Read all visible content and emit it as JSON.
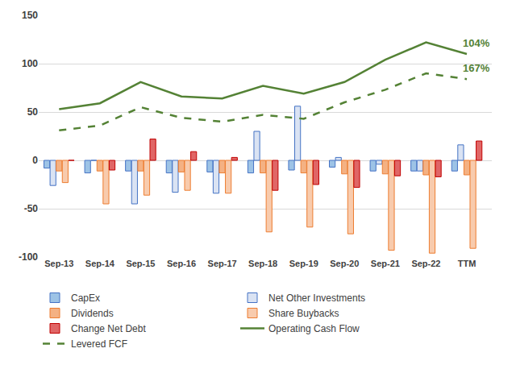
{
  "chart_data": {
    "type": "bar",
    "categories": [
      "Sep-13",
      "Sep-14",
      "Sep-15",
      "Sep-16",
      "Sep-17",
      "Sep-18",
      "Sep-19",
      "Sep-20",
      "Sep-21",
      "Sep-22",
      "TTM"
    ],
    "series": [
      {
        "name": "CapEx",
        "type": "bar",
        "color": "#9dc3e6",
        "values": [
          -8,
          -13,
          -11,
          -13,
          -12,
          -13,
          -10,
          -7,
          -11,
          -11,
          -11
        ]
      },
      {
        "name": "Net Other Investments",
        "type": "bar",
        "color": "#dae3f3",
        "values": [
          -26,
          0,
          -45,
          -33,
          -34,
          30,
          56,
          3,
          -4,
          -11,
          16
        ]
      },
      {
        "name": "Dividends",
        "type": "bar",
        "color": "#f4b183",
        "values": [
          -11,
          -11,
          -11,
          -12,
          -13,
          -13,
          -13,
          -14,
          -14,
          -15,
          -15
        ]
      },
      {
        "name": "Share Buybacks",
        "type": "bar",
        "color": "#f8cbad",
        "values": [
          -23,
          -45,
          -36,
          -31,
          -34,
          -74,
          -69,
          -76,
          -93,
          -96,
          -91
        ]
      },
      {
        "name": "Change Net Debt",
        "type": "bar",
        "color": "#e06666",
        "values": [
          0,
          -10,
          22,
          9,
          3,
          -31,
          -25,
          -28,
          -16,
          -17,
          20
        ]
      },
      {
        "name": "Operating Cash Flow",
        "type": "line",
        "line_style": "solid",
        "color": "#548235",
        "values": [
          53,
          59,
          81,
          66,
          64,
          77,
          69,
          81,
          104,
          122,
          110
        ],
        "annotation": "104%"
      },
      {
        "name": "Levered FCF",
        "type": "line",
        "line_style": "dashed",
        "color": "#548235",
        "values": [
          31,
          36,
          55,
          44,
          40,
          47,
          43,
          60,
          73,
          90,
          84
        ],
        "annotation": "167%"
      }
    ],
    "ylim": [
      -100,
      150
    ],
    "yticks": [
      -100,
      -50,
      0,
      50,
      100,
      150
    ],
    "grid": true,
    "legend": "bottom"
  }
}
